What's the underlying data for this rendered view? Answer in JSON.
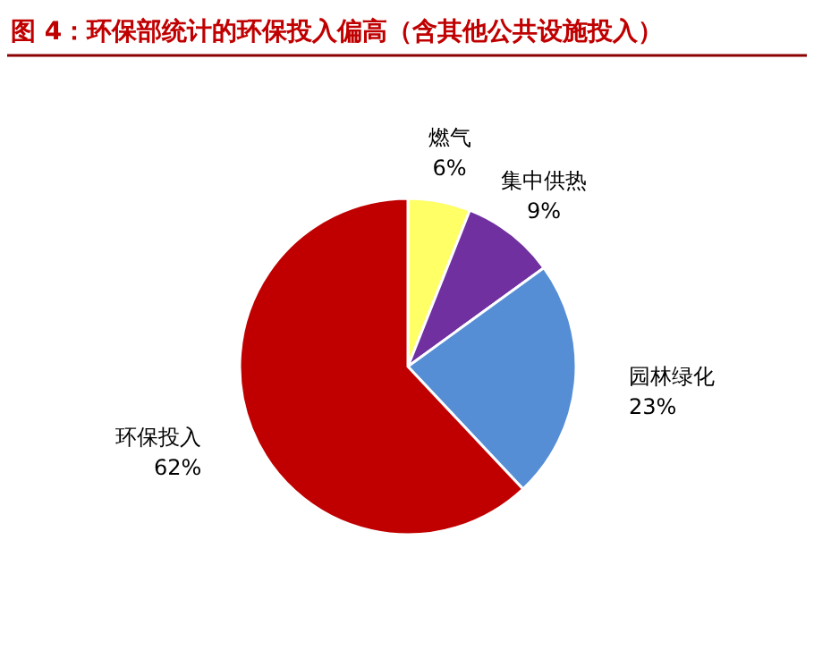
{
  "chart_data": {
    "type": "pie",
    "title": "图 4：环保部统计的环保投入偏高（含其他公共设施投入）",
    "categories": [
      "燃气",
      "集中供热",
      "园林绿化",
      "环保投入"
    ],
    "values": [
      6,
      9,
      23,
      62
    ],
    "value_labels": [
      "6%",
      "9%",
      "23%",
      "62%"
    ],
    "colors": [
      "#ffff66",
      "#7030a0",
      "#558ed5",
      "#c00000"
    ]
  }
}
